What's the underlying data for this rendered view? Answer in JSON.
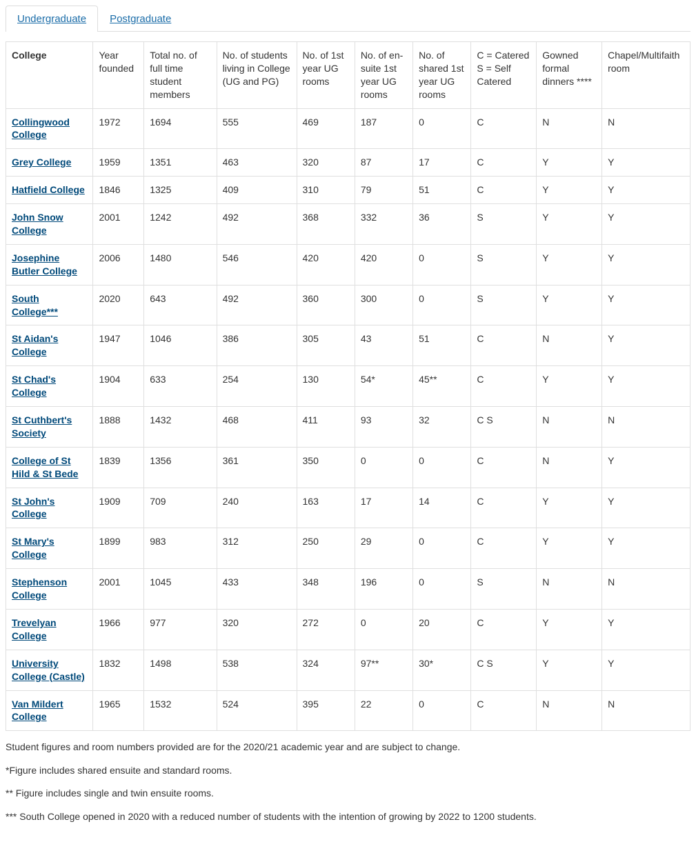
{
  "tabs": [
    {
      "label": "Undergraduate",
      "active": true
    },
    {
      "label": "Postgraduate",
      "active": false
    }
  ],
  "table": {
    "columns": [
      "College",
      "Year founded",
      "Total no. of full time student members",
      "No. of students living in College (UG and PG)",
      "No. of 1st year UG rooms",
      "No. of en-suite 1st year UG rooms",
      "No. of shared 1st year UG rooms",
      "C = Catered S = Self Catered",
      "Gowned formal dinners ****",
      "Chapel/Multifaith room"
    ],
    "rows": [
      {
        "college": "Collingwood College",
        "cells": [
          "1972",
          "1694",
          "555",
          "469",
          "187",
          "0",
          "C",
          "N",
          "N"
        ]
      },
      {
        "college": "Grey College",
        "cells": [
          "1959",
          "1351",
          "463",
          "320",
          "87",
          "17",
          "C",
          "Y",
          "Y"
        ]
      },
      {
        "college": "Hatfield College",
        "cells": [
          "1846",
          "1325",
          "409",
          "310",
          "79",
          "51",
          "C",
          "Y",
          "Y"
        ]
      },
      {
        "college": "John Snow College",
        "cells": [
          "2001",
          "1242",
          "492",
          "368",
          "332",
          "36",
          "S",
          "Y",
          "Y"
        ]
      },
      {
        "college": "Josephine Butler College",
        "cells": [
          "2006",
          "1480",
          "546",
          "420",
          "420",
          "0",
          "S",
          "Y",
          "Y"
        ]
      },
      {
        "college": "South College***",
        "cells": [
          "2020",
          "643",
          "492",
          "360",
          "300",
          "0",
          "S",
          "Y",
          "Y"
        ]
      },
      {
        "college": "St Aidan's College",
        "cells": [
          "1947",
          "1046",
          "386",
          "305",
          "43",
          "51",
          "C",
          "N",
          "Y"
        ]
      },
      {
        "college": "St Chad's College",
        "cells": [
          "1904",
          "633",
          "254",
          "130",
          "54*",
          "45**",
          "C",
          "Y",
          "Y"
        ]
      },
      {
        "college": "St Cuthbert's Society",
        "cells": [
          "1888",
          "1432",
          "468",
          "411",
          "93",
          "32",
          "C S",
          "N",
          "N"
        ]
      },
      {
        "college": "College of St Hild & St Bede",
        "cells": [
          "1839",
          "1356",
          "361",
          "350",
          "0",
          "0",
          "C",
          "N",
          "Y"
        ]
      },
      {
        "college": "St John's College",
        "cells": [
          "1909",
          "709",
          "240",
          "163",
          "17",
          "14",
          "C",
          "Y",
          "Y"
        ]
      },
      {
        "college": "St Mary's College",
        "cells": [
          "1899",
          "983",
          "312",
          "250",
          "29",
          "0",
          "C",
          "Y",
          "Y"
        ]
      },
      {
        "college": "Stephenson College",
        "cells": [
          "2001",
          "1045",
          "433",
          "348",
          "196",
          "0",
          "S",
          "N",
          "N"
        ]
      },
      {
        "college": "Trevelyan College",
        "cells": [
          "1966",
          "977",
          "320",
          "272",
          "0",
          "20",
          "C",
          "Y",
          "Y"
        ]
      },
      {
        "college": "University College (Castle)",
        "cells": [
          "1832",
          "1498",
          "538",
          "324",
          "97**",
          "30*",
          "C S",
          "Y",
          "Y"
        ]
      },
      {
        "college": "Van Mildert College",
        "cells": [
          "1965",
          "1532",
          "524",
          "395",
          "22",
          "0",
          "C",
          "N",
          "N"
        ]
      }
    ]
  },
  "notes": [
    "Student figures and room numbers provided are for the 2020/21 academic year and are subject to change.",
    "*Figure includes shared ensuite and standard rooms.",
    "** Figure includes single and twin ensuite rooms.",
    "*** South College opened in 2020 with a reduced number of students with the intention of growing by 2022 to 1200 students."
  ],
  "colors": {
    "link": "#00497a",
    "tab_link": "#1a6ca8",
    "border": "#dfdfdf",
    "text": "#333333",
    "background": "#ffffff"
  }
}
